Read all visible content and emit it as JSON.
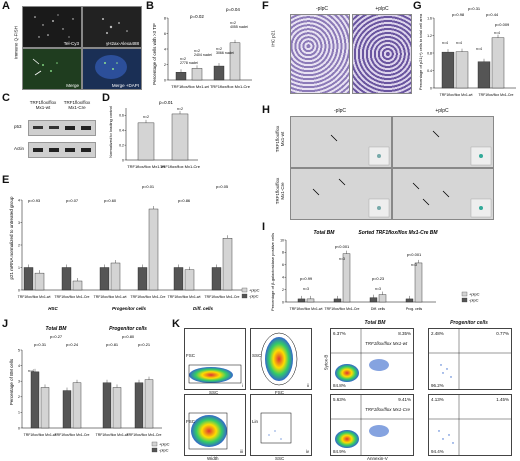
{
  "panels": {
    "A": {
      "letter": "A",
      "side_label": "Immuno Q-FISH",
      "tiles": [
        "Tel-Cy3",
        "γH2ax-Alexa488",
        "Merge",
        "Merge +DAPI"
      ]
    },
    "B": {
      "letter": "B",
      "ylabel": "Percentage of cells with >3 TIF",
      "p_values": [
        "p=0.02",
        "p=0.04"
      ],
      "n_labels": [
        [
          "n=2",
          "2778 nuclei"
        ],
        [
          "n=2",
          "2404 nuclei"
        ],
        [
          "n=2",
          "3066 nuclei"
        ],
        [
          "n=2",
          "4055 nuclei"
        ]
      ],
      "groups": [
        "TRF1flox/flox Mx1-wt",
        "TRF1flox/flox Mx1-Cre"
      ]
    },
    "C": {
      "letter": "C",
      "genotypes": [
        "TRF1flox/flox Mx1-wt",
        "TRF1flox/flox Mx1-Cre"
      ],
      "bands": [
        "p53",
        "Actin"
      ]
    },
    "D": {
      "letter": "D",
      "ylabel": "Normalized to loading control",
      "p_value": "p=0.01",
      "n_labels": [
        "n=2",
        "n=2"
      ],
      "groups": [
        "TRF1flox/flox Mx1-wt",
        "TRF1flox/flox Mx1-Cre"
      ]
    },
    "E": {
      "letter": "E",
      "ylabel": "p21 mRNA normalized to untreated group",
      "p_values": [
        "p=0.93",
        "p=0.07",
        "p=0.60",
        "p=0.01",
        "p=0.86",
        "p=0.05"
      ],
      "groups": [
        "TRF1flox/flox Mx1-wt",
        "TRF1flox/flox Mx1-Cre",
        "TRF1flox/flox Mx1-wt",
        "TRF1flox/flox Mx1-Cre",
        "TRF1flox/flox Mx1-wt",
        "TRF1flox/flox Mx1-Cre"
      ],
      "categories": [
        "HSC",
        "Progenitor cells",
        "Diff. cells"
      ],
      "legend": [
        "+plpC",
        "-plpC"
      ],
      "n_label": "n=2"
    },
    "F": {
      "letter": "F",
      "side_label": "IHC p21",
      "cols": [
        "-plpC",
        "+plpC"
      ]
    },
    "G": {
      "letter": "G",
      "ylabel": "Percentage of p21(+) cells to total cell area",
      "p_values": [
        "p=0.31",
        "p=0.98",
        "p=0.44",
        "p=0.009"
      ],
      "n_labels": [
        "n=4",
        "n=4",
        "n=4",
        "n=4"
      ],
      "groups": [
        "TRF1flox/flox Mx1-wt",
        "TRF1flox/flox Mx1-Cre"
      ]
    },
    "H": {
      "letter": "H",
      "cols": [
        "-plpC",
        "+plpC"
      ],
      "rows": [
        "TRF1flox/flox Mx1-wt",
        "TRF1flox/flox Mx1-Cre"
      ]
    },
    "I": {
      "letter": "I",
      "ylabel": "Percentage of β-galactosidase positive cells",
      "titles": [
        "Total BM",
        "Sorted TRF1flox/flox Mx1-Cre BM"
      ],
      "p_values": [
        "p=0.99",
        "p<0.001",
        "p=0.23",
        "p<0.001"
      ],
      "n_labels": [
        "n=3",
        "n=3",
        "n=3",
        "n=3"
      ],
      "groups": [
        "TRF1flox/flox Mx1-wt",
        "TRF1flox/flox Mx1-Cre",
        "Diff. cells",
        "Prog. cells"
      ],
      "legend": [
        "+plpC",
        "-plpC"
      ]
    },
    "J": {
      "letter": "J",
      "ylabel": "Percentage of BM cells",
      "titles": [
        "Total BM",
        "Progenitor cells"
      ],
      "p_values": [
        "p=0.27",
        "p=0.31",
        "p=0.24",
        "p=0.80",
        "p=0.81",
        "p=0.21"
      ],
      "n_label": "n=4",
      "groups": [
        "TRF1flox/flox Mx1-wt",
        "TRF1flox/flox Mx1-Cre",
        "TRF1flox/flox Mx1-wt",
        "TRF1flox/flox Mx1-Cre"
      ],
      "legend": [
        "+plpC",
        "-plpC"
      ]
    },
    "K": {
      "letter": "K",
      "titles": [
        "Total BM",
        "Progenitor cells"
      ],
      "gates": [
        "i",
        "ii",
        "iii",
        "iv"
      ],
      "axes": [
        "FSC",
        "SSC",
        "SSC",
        "FSC",
        "FSC",
        "Width",
        "SSC",
        "Lin",
        "Annexin-V",
        "Sytox-B"
      ],
      "rows": [
        "TRF1flox/flox Mx1-wt",
        "TRF1flox/flox Mx1-Cre"
      ],
      "quads": [
        [
          "6.37%",
          "8.35%",
          "84.8%"
        ],
        [
          "2.48%",
          "0.77%",
          "96.2%"
        ],
        [
          "5.63%",
          "9.41%",
          "84.9%"
        ],
        [
          "4.13%",
          "1.45%",
          "94.4%"
        ]
      ]
    }
  },
  "colors": {
    "dark_bar": "#555555",
    "light_bar": "#d4d4d4",
    "ihc_purple": "#6a55a0",
    "fish_green": "#3a7a3a"
  },
  "chart_data": [
    {
      "type": "bar",
      "panel": "B",
      "categories": [
        "Mx1-wt -plpC",
        "Mx1-wt +plpC",
        "Mx1-Cre -plpC",
        "Mx1-Cre +plpC"
      ],
      "values": [
        1.0,
        1.5,
        1.8,
        4.8
      ],
      "ylim": [
        0,
        8
      ],
      "ylabel": "Percentage of cells with >3 TIF"
    },
    {
      "type": "bar",
      "panel": "D",
      "categories": [
        "Mx1-wt",
        "Mx1-Cre"
      ],
      "values": [
        0.5,
        0.62
      ],
      "ylim": [
        0,
        0.7
      ],
      "ylabel": "Normalized to loading control"
    },
    {
      "type": "bar",
      "panel": "E",
      "categories": [
        "HSC wt",
        "HSC Cre",
        "Prog wt",
        "Prog Cre",
        "Diff wt",
        "Diff Cre"
      ],
      "series": [
        {
          "name": "-plpC",
          "values": [
            1.0,
            1.0,
            1.0,
            1.0,
            1.0,
            1.0
          ]
        },
        {
          "name": "+plpC",
          "values": [
            0.75,
            0.4,
            1.2,
            3.6,
            0.9,
            2.3
          ]
        }
      ],
      "ylim": [
        0,
        4
      ],
      "ylabel": "p21 mRNA normalized to untreated group"
    },
    {
      "type": "bar",
      "panel": "G",
      "categories": [
        "Mx1-wt -plpC",
        "Mx1-wt +plpC",
        "Mx1-Cre -plpC",
        "Mx1-Cre +plpC"
      ],
      "values": [
        0.82,
        0.83,
        0.6,
        1.15
      ],
      "ylim": [
        0,
        1.6
      ],
      "ylabel": "Percentage of p21(+) cells to total cell area"
    },
    {
      "type": "bar",
      "panel": "I",
      "categories": [
        "Mx1-wt",
        "Mx1-Cre",
        "Diff. cells",
        "Prog. cells"
      ],
      "series": [
        {
          "name": "-plpC",
          "values": [
            0.5,
            0.5,
            0.7,
            0.5
          ]
        },
        {
          "name": "+plpC",
          "values": [
            0.5,
            7.8,
            1.2,
            6.3
          ]
        }
      ],
      "ylim": [
        0,
        10
      ],
      "ylabel": "Percentage of β-galactosidase positive cells"
    },
    {
      "type": "bar",
      "panel": "J",
      "categories": [
        "Total wt",
        "Total Cre",
        "Prog wt",
        "Prog Cre"
      ],
      "series": [
        {
          "name": "-plpC",
          "values": [
            3.6,
            2.4,
            2.9,
            2.9
          ]
        },
        {
          "name": "+plpC",
          "values": [
            2.6,
            2.9,
            2.6,
            3.1
          ]
        }
      ],
      "ylim": [
        0,
        5
      ],
      "ylabel": "Percentage of BM cells"
    }
  ]
}
